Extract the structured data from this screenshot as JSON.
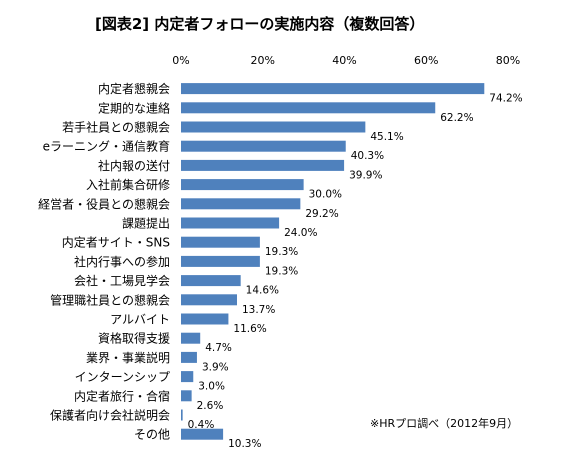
{
  "chart_data": {
    "type": "bar",
    "orientation": "horizontal",
    "title": "[図表2] 内定者フォローの実施内容（複数回答）",
    "xlim": [
      0,
      80
    ],
    "xticks": [
      0,
      20,
      40,
      60,
      80
    ],
    "tick_suffix": "%",
    "grid": false,
    "bar_color": "#4f81bd",
    "categories": [
      "内定者懇親会",
      "定期的な連絡",
      "若手社員との懇親会",
      "eラーニング・通信教育",
      "社内報の送付",
      "入社前集合研修",
      "経営者・役員との懇親会",
      "課題提出",
      "内定者サイト・SNS",
      "社内行事への参加",
      "会社・工場見学会",
      "管理職社員との懇親会",
      "アルバイト",
      "資格取得支援",
      "業界・事業説明",
      "インターンシップ",
      "内定者旅行・合宿",
      "保護者向け会社説明会",
      "その他"
    ],
    "values": [
      74.2,
      62.2,
      45.1,
      40.3,
      39.9,
      30.0,
      29.2,
      24.0,
      19.3,
      19.3,
      14.6,
      13.7,
      11.6,
      4.7,
      3.9,
      3.0,
      2.6,
      0.4,
      10.3
    ],
    "value_labels": [
      "74.2%",
      "62.2%",
      "45.1%",
      "40.3%",
      "39.9%",
      "30.0%",
      "29.2%",
      "24.0%",
      "19.3%",
      "19.3%",
      "14.6%",
      "13.7%",
      "11.6%",
      "4.7%",
      "3.9%",
      "3.0%",
      "2.6%",
      "0.4%",
      "10.3%"
    ],
    "source_note": "※HRプロ調べ（2012年9月）"
  }
}
